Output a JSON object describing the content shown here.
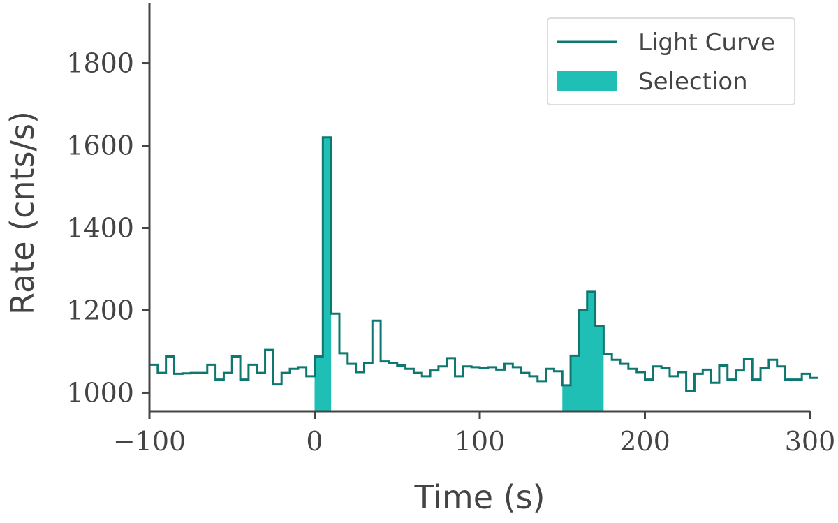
{
  "chart_data": {
    "type": "area",
    "xlabel": "Time (s)",
    "ylabel": "Rate (cnts/s)",
    "xlim": [
      -100,
      300
    ],
    "ylim": [
      955,
      1945
    ],
    "x_ticks": [
      -100,
      0,
      100,
      200,
      300
    ],
    "x_tick_labels": [
      "−100",
      "0",
      "100",
      "200",
      "300"
    ],
    "y_ticks": [
      1000,
      1200,
      1400,
      1600,
      1800
    ],
    "y_tick_labels": [
      "1000",
      "1200",
      "1400",
      "1600",
      "1800"
    ],
    "grid": false,
    "legend_position": "top-right",
    "colors": {
      "line": "#0d7770",
      "fill": "#20bfb6",
      "axis": "#444444"
    },
    "series": [
      {
        "name": "Light Curve",
        "style": "step",
        "bin_width": 5,
        "x_start": -100,
        "values": [
          1068,
          1048,
          1088,
          1046,
          1047,
          1048,
          1048,
          1068,
          1032,
          1048,
          1088,
          1032,
          1068,
          1048,
          1104,
          1020,
          1048,
          1058,
          1062,
          1040,
          1088,
          1620,
          1192,
          1096,
          1070,
          1050,
          1072,
          1175,
          1076,
          1072,
          1066,
          1058,
          1048,
          1040,
          1054,
          1064,
          1084,
          1040,
          1064,
          1062,
          1060,
          1062,
          1056,
          1070,
          1062,
          1048,
          1040,
          1028,
          1058,
          1052,
          1018,
          1090,
          1200,
          1245,
          1162,
          1094,
          1080,
          1070,
          1058,
          1050,
          1032,
          1064,
          1060,
          1040,
          1050,
          1004,
          1046,
          1056,
          1024,
          1066,
          1032,
          1054,
          1082,
          1032,
          1060,
          1080,
          1064,
          1032,
          1032,
          1046,
          1036
        ]
      },
      {
        "name": "Selection",
        "style": "filled-region",
        "intervals": [
          [
            0,
            10
          ],
          [
            150,
            175
          ]
        ]
      }
    ]
  }
}
